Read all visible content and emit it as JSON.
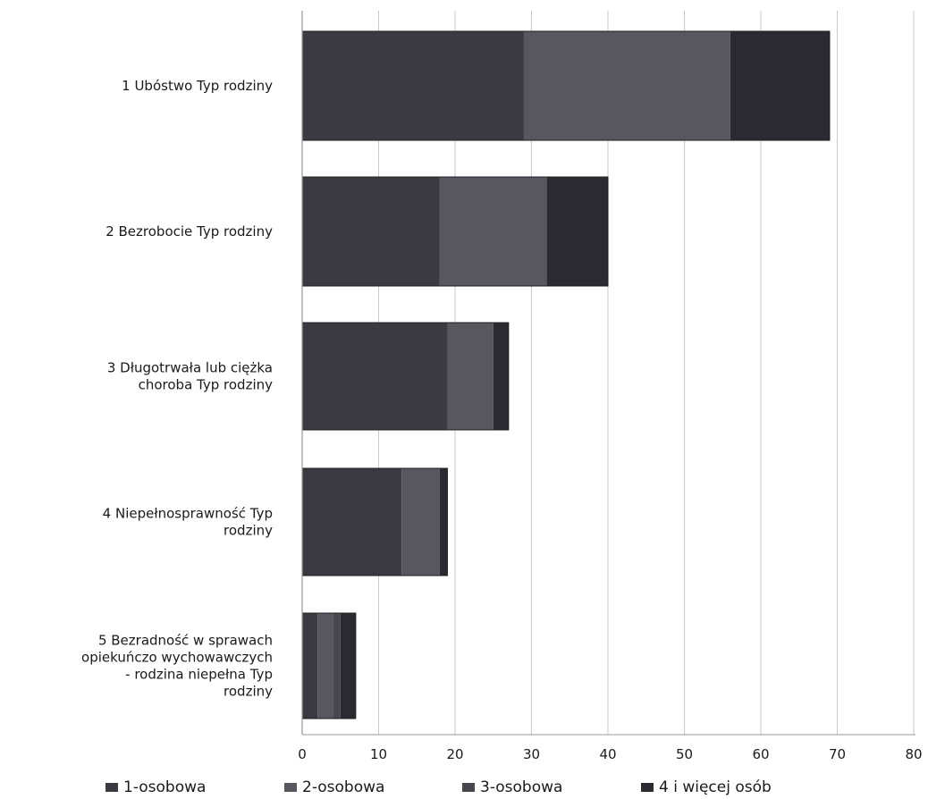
{
  "chart_data": {
    "type": "bar",
    "orientation": "horizontal",
    "stacked": true,
    "categories": [
      "1 Ubóstwo Typ rodziny",
      "2 Bezrobocie Typ rodziny",
      "3 Długotrwała lub ciężka choroba Typ rodziny",
      "4 Niepełnosprawność Typ rodziny",
      "5 Bezradność w sprawach opiekuńczo wychowawczych - rodzina niepełna Typ rodziny"
    ],
    "category_lines": [
      [
        "1 Ubóstwo Typ rodziny"
      ],
      [
        "2 Bezrobocie Typ rodziny"
      ],
      [
        "3 Długotrwała lub ciężka",
        "choroba Typ rodziny"
      ],
      [
        "4 Niepełnosprawność Typ",
        "rodziny"
      ],
      [
        "5 Bezradność w sprawach",
        "opiekuńczo wychowawczych",
        "- rodzina niepełna Typ",
        "rodziny"
      ]
    ],
    "series": [
      {
        "name": "1-osobowa",
        "values": [
          29,
          18,
          19,
          13,
          2
        ],
        "color": "#3a3a40"
      },
      {
        "name": "2-osobowa",
        "values": [
          27,
          14,
          6,
          5,
          2
        ],
        "color": "#57575d"
      },
      {
        "name": "3-osobowa",
        "values": [
          0,
          0,
          0,
          0,
          1
        ],
        "color": "#46464c"
      },
      {
        "name": "4  i więcej osób",
        "values": [
          13,
          8,
          2,
          1,
          2
        ],
        "color": "#2a2a30"
      }
    ],
    "xlim": [
      0,
      80
    ],
    "xticks": [
      "0",
      "10",
      "20",
      "30",
      "40",
      "50",
      "60",
      "70",
      "80"
    ],
    "grid": true,
    "legend_position": "bottom"
  }
}
